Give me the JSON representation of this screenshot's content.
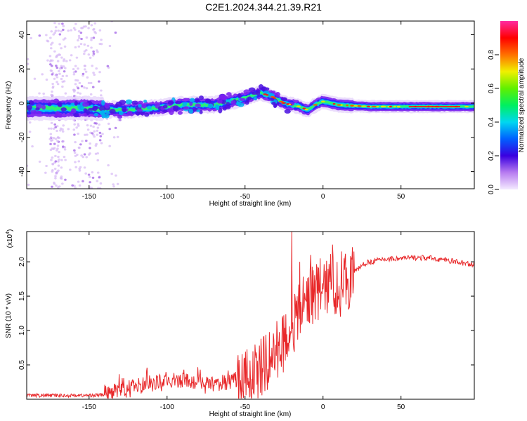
{
  "title": "C2E1.2024.344.21.39.R21",
  "chart_data": [
    {
      "type": "heatmap",
      "name": "spectrogram",
      "xlabel": "Height of straight line (km)",
      "ylabel": "Frequency (Hz)",
      "xlim": [
        -190,
        97
      ],
      "ylim": [
        -50,
        48
      ],
      "xticks": [
        -150,
        -100,
        -50,
        0,
        50
      ],
      "yticks": [
        -40,
        -20,
        0,
        20,
        40
      ],
      "ridge": [
        {
          "x": -190,
          "y": -3
        },
        {
          "x": -150,
          "y": -3
        },
        {
          "x": -130,
          "y": -4
        },
        {
          "x": -110,
          "y": -3
        },
        {
          "x": -90,
          "y": -1
        },
        {
          "x": -70,
          "y": -1
        },
        {
          "x": -60,
          "y": 1
        },
        {
          "x": -50,
          "y": 3
        },
        {
          "x": -40,
          "y": 6
        },
        {
          "x": -33,
          "y": 4
        },
        {
          "x": -25,
          "y": 0
        },
        {
          "x": -15,
          "y": -2
        },
        {
          "x": -10,
          "y": -4
        },
        {
          "x": -5,
          "y": -1
        },
        {
          "x": 0,
          "y": 1
        },
        {
          "x": 10,
          "y": -1
        },
        {
          "x": 30,
          "y": -2
        },
        {
          "x": 60,
          "y": -2
        },
        {
          "x": 97,
          "y": -2
        }
      ],
      "colorbar": {
        "label": "Normalized spectral amplitude",
        "range": [
          0,
          1
        ],
        "ticks": [
          "0.0",
          "0.2",
          "0.4",
          "0.6",
          "0.8"
        ]
      }
    },
    {
      "type": "line",
      "name": "snr",
      "xlabel": "Height of straight line (km)",
      "ylabel": "SNR (10 * v/v)",
      "multiplier": "(x10",
      "multiplier_exp": "4",
      "multiplier_close": ")",
      "xlim": [
        -190,
        97
      ],
      "ylim": [
        0,
        2.44
      ],
      "xticks": [
        -150,
        -100,
        -50,
        0,
        50
      ],
      "yticks": [
        "0.5",
        "1.0",
        "1.5",
        "2.0"
      ],
      "color": "#e8282a",
      "series": [
        {
          "name": "SNR",
          "x": [
            -190,
            -170,
            -150,
            -140,
            -135,
            -130,
            -120,
            -110,
            -100,
            -90,
            -80,
            -70,
            -60,
            -50,
            -45,
            -40,
            -35,
            -30,
            -25,
            -20,
            -15,
            -10,
            -5,
            0,
            5,
            10,
            15,
            20,
            25,
            30,
            40,
            50,
            60,
            70,
            80,
            90,
            97
          ],
          "y": [
            0.03,
            0.03,
            0.03,
            0.04,
            0.06,
            0.1,
            0.15,
            0.2,
            0.22,
            0.24,
            0.2,
            0.18,
            0.2,
            0.28,
            0.35,
            0.45,
            0.55,
            0.7,
            0.85,
            1.05,
            1.25,
            1.5,
            1.55,
            1.6,
            1.7,
            1.6,
            1.7,
            1.85,
            1.95,
            2.0,
            2.04,
            2.05,
            2.06,
            2.05,
            2.02,
            1.98,
            1.96
          ]
        }
      ],
      "spikes": [
        {
          "x": -20,
          "y": 2.44
        },
        {
          "x": -15,
          "y": 2.0
        },
        {
          "x": -8,
          "y": 2.1
        },
        {
          "x": -2,
          "y": 2.05
        },
        {
          "x": 6,
          "y": 2.25
        },
        {
          "x": 12,
          "y": 2.15
        },
        {
          "x": 16,
          "y": 1.75
        }
      ]
    }
  ]
}
